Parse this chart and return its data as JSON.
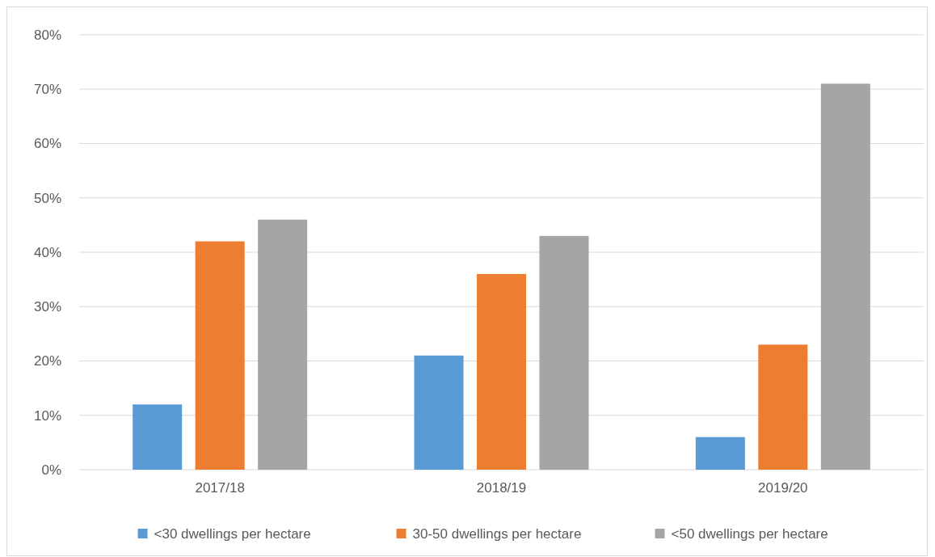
{
  "chart_data": {
    "type": "bar",
    "categories": [
      "2017/18",
      "2018/19",
      "2019/20"
    ],
    "series": [
      {
        "name": "<30 dwellings per hectare",
        "color": "#5b9bd5",
        "values": [
          12,
          21,
          6
        ]
      },
      {
        "name": "30-50 dwellings per hectare",
        "color": "#ed7d31",
        "values": [
          42,
          36,
          23
        ]
      },
      {
        "name": "<50 dwellings per hectare",
        "color": "#a5a5a5",
        "values": [
          46,
          43,
          71
        ]
      }
    ],
    "ylim": [
      0,
      80
    ],
    "yticks": [
      {
        "value": 0,
        "label": "0%"
      },
      {
        "value": 10,
        "label": "10%"
      },
      {
        "value": 20,
        "label": "20%"
      },
      {
        "value": 30,
        "label": "30%"
      },
      {
        "value": 40,
        "label": "40%"
      },
      {
        "value": 50,
        "label": "50%"
      },
      {
        "value": 60,
        "label": "60%"
      },
      {
        "value": 70,
        "label": "70%"
      },
      {
        "value": 80,
        "label": "80%"
      }
    ],
    "grid": "y",
    "legend": "bottom"
  }
}
